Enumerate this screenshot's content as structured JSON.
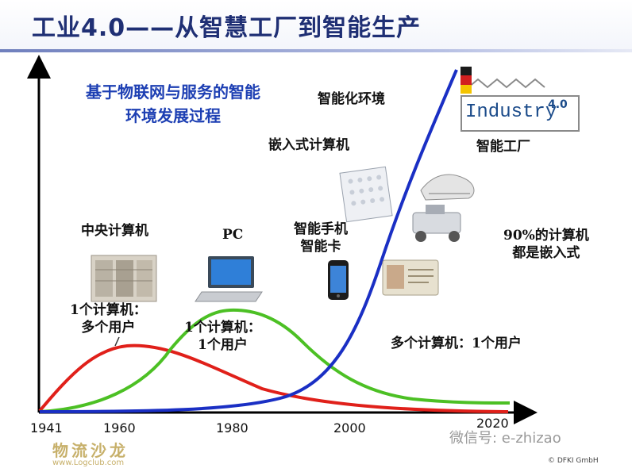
{
  "header": {
    "title": "工业4.0——从智慧工厂到智能生产"
  },
  "diagram": {
    "blue_heading": {
      "line1": "基于物联网与服务的智能",
      "line2": "环境发展过程"
    },
    "labels": {
      "smart_env": "智能化环境",
      "embedded": "嵌入式计算机",
      "smart_factory": "智能工厂",
      "central": "中央计算机",
      "pc": "PC",
      "smartphone_line1": "智能手机",
      "smartphone_line2": "智能卡",
      "percent_line1": "90%的计算机",
      "percent_line2": "都是嵌入式",
      "one_many_line1": "1个计算机：",
      "one_many_line2": "多个用户",
      "one_one_line1": "1个计算机：",
      "one_one_line2": "1个用户",
      "many_one": "多个计算机：1个用户"
    },
    "x_ticks": [
      "1941",
      "1960",
      "1980",
      "2000",
      "2020"
    ],
    "logo": {
      "text": "Industry",
      "version": "4.0"
    },
    "series_colors": {
      "central": "#e0201a",
      "pc": "#4cc024",
      "embedded": "#1a2fc4"
    }
  },
  "watermarks": {
    "wechat": "微信号: e-zhizao",
    "logclub": "物流沙龙",
    "logclub_url": "www.Logclub.com",
    "copyright": "© DFKI GmbH"
  }
}
